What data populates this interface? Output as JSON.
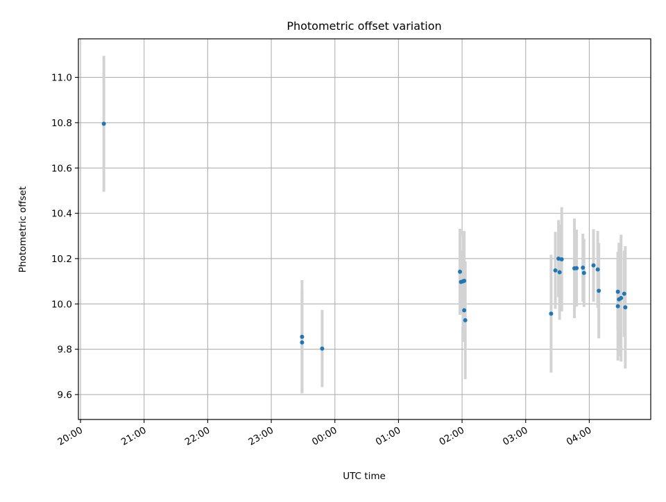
{
  "chart_data": {
    "type": "scatter",
    "title": "Photometric offset variation",
    "xlabel": "UTC time",
    "ylabel": "Photometric offset",
    "grid": true,
    "legend": "none",
    "x_unit": "UTC time",
    "xlim": [
      "19:58",
      "04:58"
    ],
    "ylim": [
      9.49,
      11.17
    ],
    "xticks": [
      "20:00",
      "21:00",
      "22:00",
      "23:00",
      "00:00",
      "01:00",
      "02:00",
      "03:00",
      "04:00"
    ],
    "yticks": [
      "9.6",
      "9.8",
      "10.0",
      "10.2",
      "10.4",
      "10.6",
      "10.8",
      "11.0"
    ],
    "colors": {
      "marker": "#1f77b4",
      "errorbar": "#d3d3d3",
      "grid": "#b0b0b0",
      "axes": "#000000"
    },
    "points": [
      {
        "x": "20:22",
        "y": 10.795,
        "yerr": 0.3
      },
      {
        "x": "23:29",
        "y": 9.855,
        "yerr": 0.25
      },
      {
        "x": "23:29",
        "y": 9.83,
        "yerr": 0.22
      },
      {
        "x": "23:48",
        "y": 9.803,
        "yerr": 0.17
      },
      {
        "x": "01:58",
        "y": 10.142,
        "yerr": 0.19
      },
      {
        "x": "01:59",
        "y": 10.097,
        "yerr": 0.14
      },
      {
        "x": "02:01",
        "y": 10.1,
        "yerr": 0.2
      },
      {
        "x": "02:02",
        "y": 10.102,
        "yerr": 0.22
      },
      {
        "x": "02:02",
        "y": 9.972,
        "yerr": 0.14
      },
      {
        "x": "02:03",
        "y": 9.928,
        "yerr": 0.26
      },
      {
        "x": "03:24",
        "y": 9.957,
        "yerr": 0.26
      },
      {
        "x": "03:28",
        "y": 10.148,
        "yerr": 0.17
      },
      {
        "x": "03:31",
        "y": 10.2,
        "yerr": 0.17
      },
      {
        "x": "03:32",
        "y": 10.14,
        "yerr": 0.21
      },
      {
        "x": "03:34",
        "y": 10.197,
        "yerr": 0.23
      },
      {
        "x": "03:46",
        "y": 10.157,
        "yerr": 0.22
      },
      {
        "x": "03:48",
        "y": 10.158,
        "yerr": 0.17
      },
      {
        "x": "03:54",
        "y": 10.16,
        "yerr": 0.15
      },
      {
        "x": "03:55",
        "y": 10.137,
        "yerr": 0.15
      },
      {
        "x": "04:04",
        "y": 10.17,
        "yerr": 0.16
      },
      {
        "x": "04:08",
        "y": 10.152,
        "yerr": 0.17
      },
      {
        "x": "04:09",
        "y": 10.058,
        "yerr": 0.21
      },
      {
        "x": "04:27",
        "y": 10.054,
        "yerr": 0.17
      },
      {
        "x": "04:27",
        "y": 9.99,
        "yerr": 0.24
      },
      {
        "x": "04:28",
        "y": 10.02,
        "yerr": 0.25
      },
      {
        "x": "04:30",
        "y": 10.026,
        "yerr": 0.28
      },
      {
        "x": "04:33",
        "y": 10.045,
        "yerr": 0.19
      },
      {
        "x": "04:34",
        "y": 9.985,
        "yerr": 0.27
      }
    ]
  }
}
